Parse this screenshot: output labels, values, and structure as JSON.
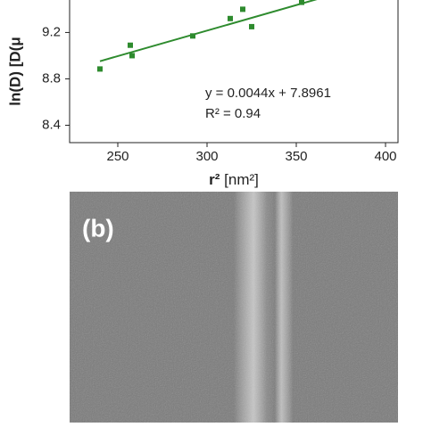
{
  "chart_data": {
    "type": "scatter",
    "y_label": "ln(D) [D(μ",
    "x_label": {
      "symbol": "r²",
      "unit": "[nm²]"
    },
    "x": [
      240,
      257,
      258,
      292,
      313,
      320,
      325,
      353
    ],
    "y": [
      8.885,
      9.09,
      9.0,
      9.17,
      9.32,
      9.4,
      9.25,
      9.46
    ],
    "color": "#2e8b2e",
    "fit_line": {
      "x": [
        240,
        362
      ],
      "y": [
        8.952,
        9.489
      ]
    },
    "annotations": [
      "y = 0.0044x + 7.8961",
      "R² = 0.94"
    ],
    "xlim": [
      223,
      407
    ],
    "ylim": [
      8.25,
      9.48
    ],
    "xticks": [
      250,
      300,
      350,
      400
    ],
    "yticks": [
      8.4,
      8.8,
      9.2
    ]
  },
  "image_panel": {
    "label": "(b)"
  }
}
